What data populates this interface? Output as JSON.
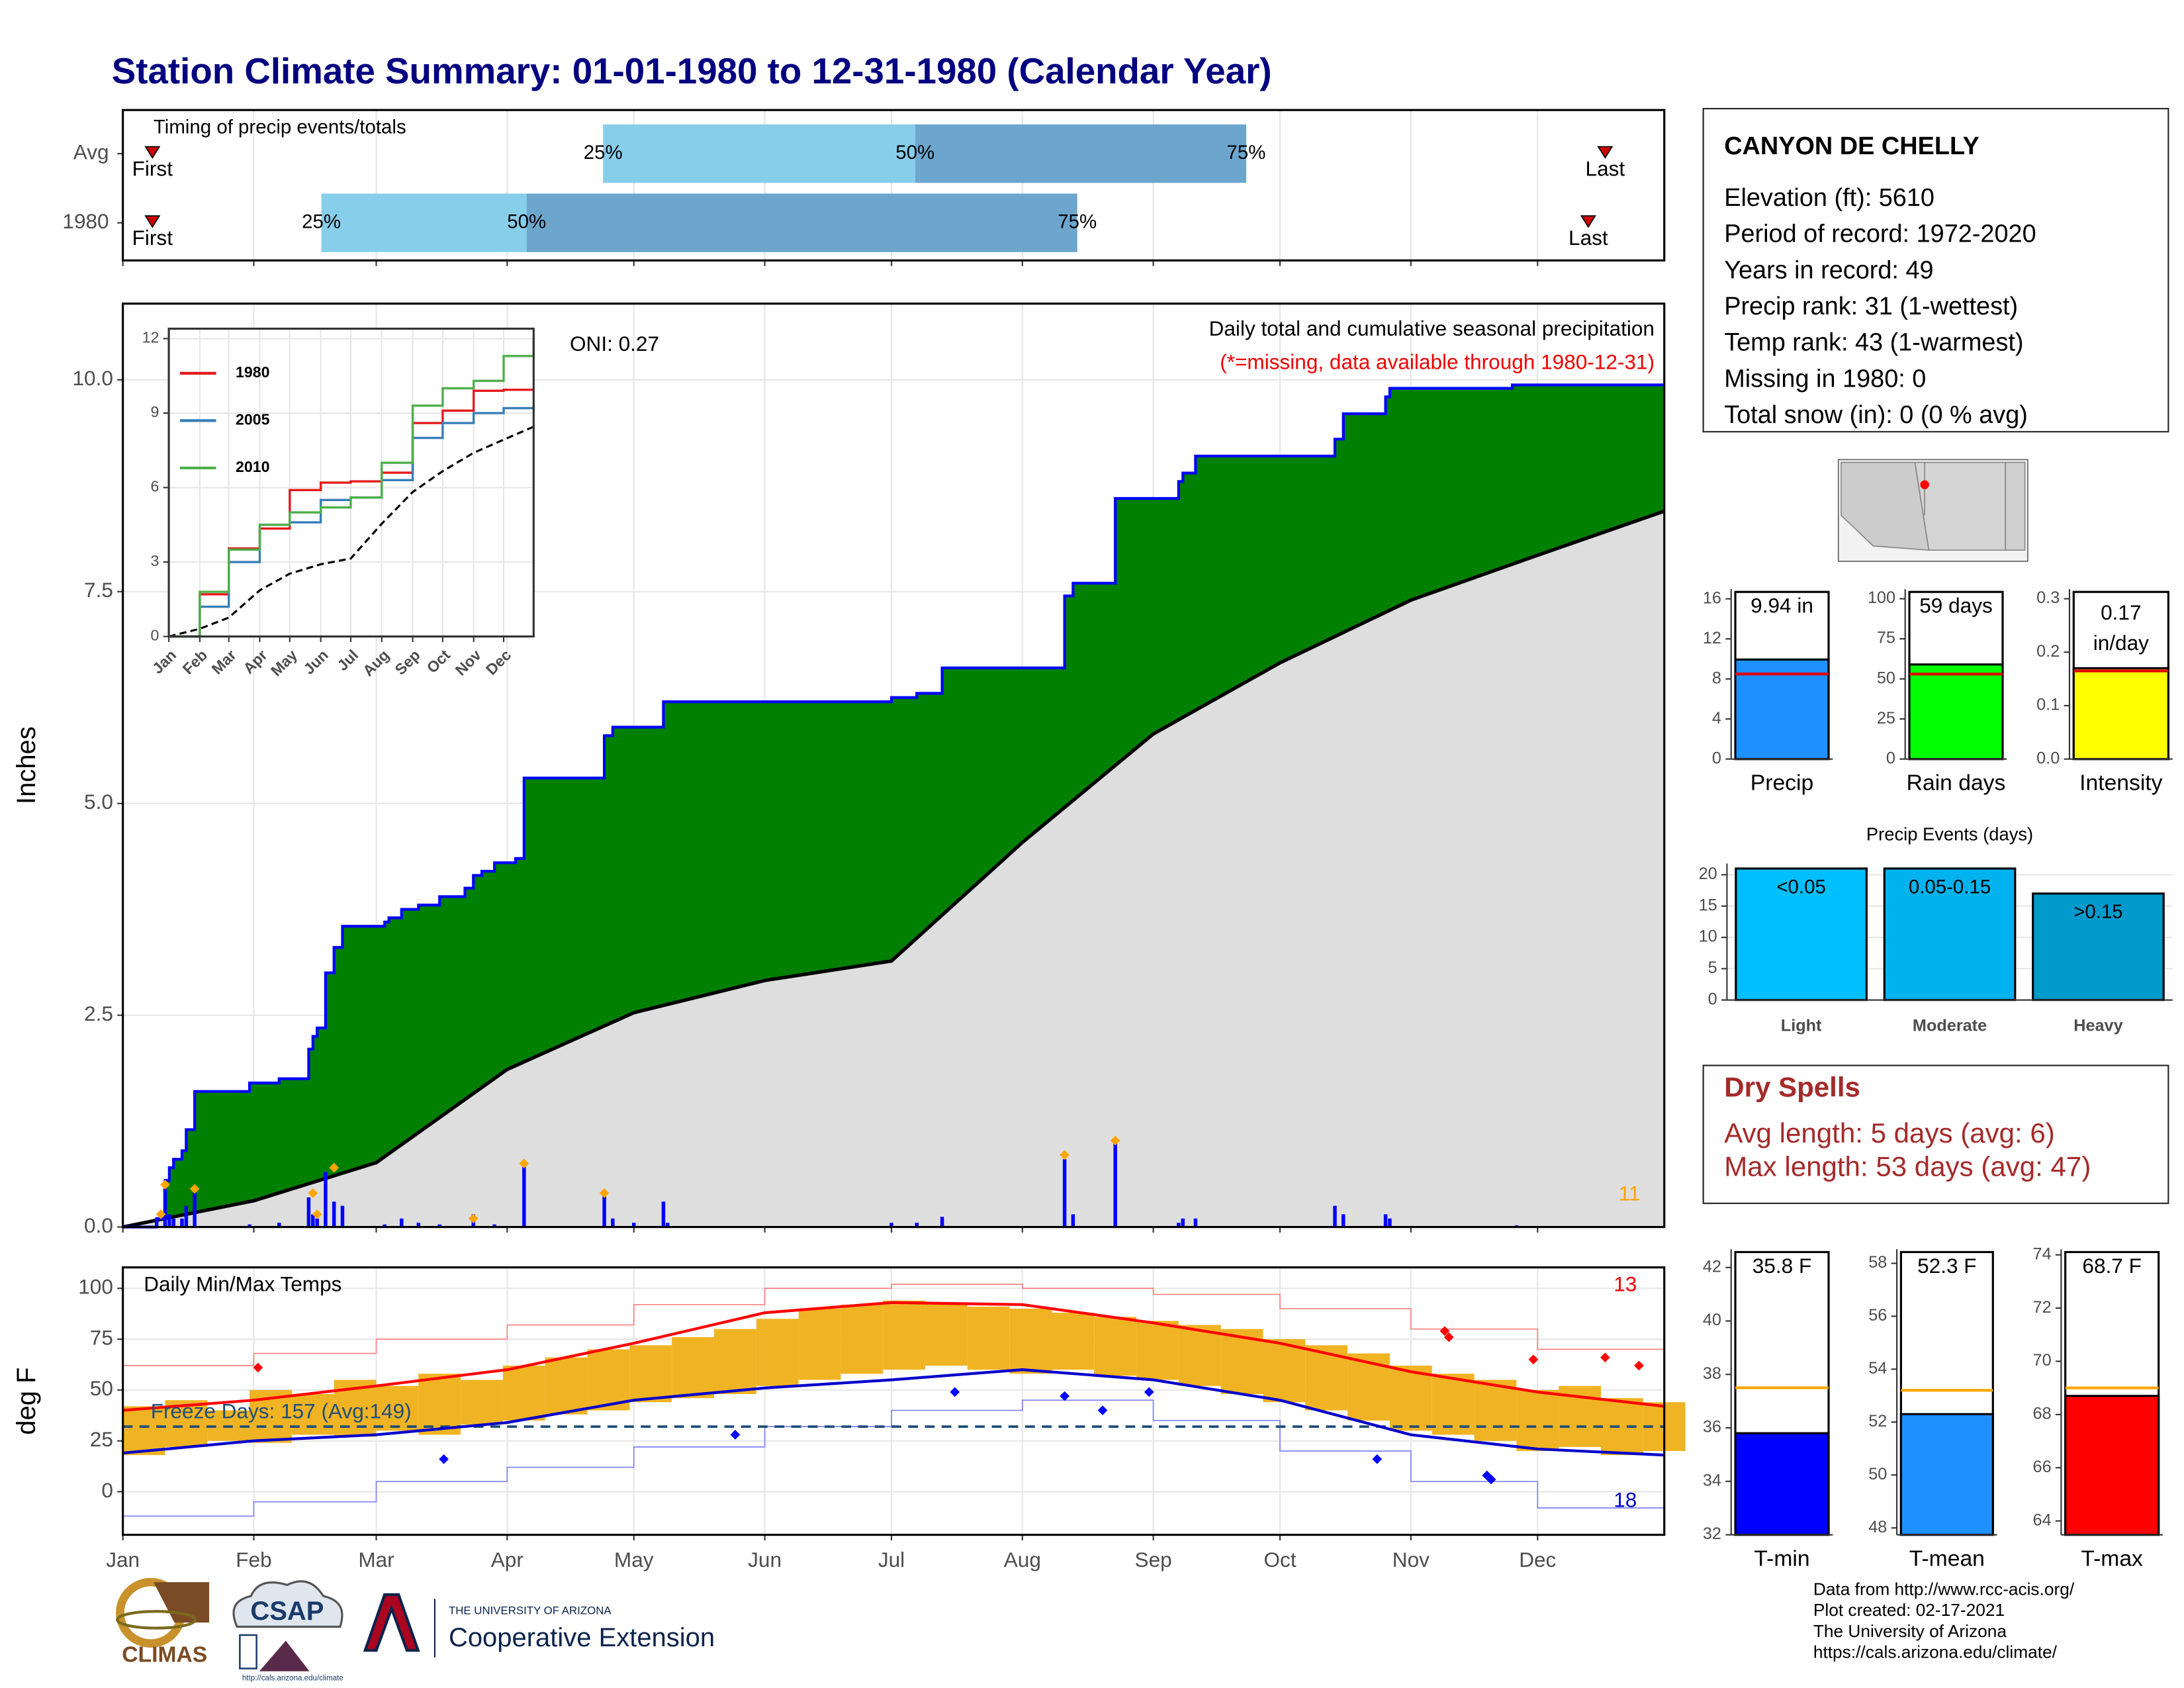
{
  "title": "Station Climate Summary: 01-01-1980 to 12-31-1980 (Calendar Year)",
  "station": {
    "name": "CANYON DE CHELLY",
    "lines": [
      "Elevation (ft): 5610",
      "Period of record: 1972-2020",
      "Years in record: 49",
      "Precip rank: 31 (1-wettest)",
      "Temp rank: 43 (1-warmest)",
      "Missing in 1980: 0",
      "Total snow (in): 0 (0 % avg)"
    ]
  },
  "dry_spells": {
    "title": "Dry Spells",
    "lines": [
      "Avg length: 5 days (avg: 6)",
      "Max length: 53 days (avg: 47)"
    ]
  },
  "footer": {
    "logos": [
      "CLIMAS",
      "CSAP",
      "http://cals.arizona.edu/climate",
      "THE UNIVERSITY OF ARIZONA",
      "Cooperative Extension"
    ],
    "credits": [
      "Data from http://www.rcc-acis.org/",
      "Plot created: 02-17-2021",
      "The University of Arizona",
      "https://cals.arizona.edu/climate/"
    ]
  },
  "chart_data": [
    {
      "type": "timeline",
      "title": "Timing of precip events/totals",
      "xlim": [
        1,
        366
      ],
      "xticks": [
        1,
        32,
        61,
        92,
        122,
        153,
        183,
        214,
        245,
        275,
        306,
        336
      ],
      "rows": [
        {
          "name": "Avg",
          "first": 8,
          "p25": 114.7,
          "p50": 188.6,
          "p75": 267,
          "last": 352
        },
        {
          "name": "1980",
          "first": 8,
          "p25": 48,
          "p50": 96.6,
          "p75": 227,
          "last": 348
        }
      ],
      "percent_labels": [
        "25%",
        "50%",
        "75%"
      ],
      "first_label": "First",
      "last_label": "Last",
      "colors": [
        "#87ceeb",
        "#6ca6cd"
      ],
      "marker_color": "#cc0000",
      "grid": true
    },
    {
      "type": "cumulative",
      "ylabel": "Inches",
      "title": "Daily total and cumulative seasonal precipitation",
      "subtitle": "(*=missing, data available through 1980-12-31)",
      "annotation": "ONI: 0.27",
      "count_label": "11",
      "xlim": [
        1,
        366
      ],
      "xticks": [
        1,
        32,
        61,
        92,
        122,
        153,
        183,
        214,
        245,
        275,
        306,
        336
      ],
      "ylim": [
        0,
        10.9
      ],
      "yticks": [
        {
          "value": 0,
          "label": "0.0"
        },
        2.5,
        {
          "value": 5,
          "label": "5.0"
        },
        7.5,
        {
          "value": 10,
          "label": "10.0"
        }
      ],
      "grid": true,
      "cumulative": {
        "color": "#0000ff",
        "fill": "#008000",
        "x": [
          1,
          9,
          11,
          12,
          13,
          15,
          16,
          18,
          31,
          38,
          45,
          46,
          47,
          49,
          51,
          53,
          63,
          64,
          67,
          71,
          76,
          82,
          84,
          86,
          89,
          94,
          96,
          115,
          117,
          129,
          183,
          189,
          195,
          224,
          226,
          236,
          251,
          252,
          255,
          288,
          290,
          300,
          301,
          330,
          366
        ],
        "values": [
          0,
          0.1,
          0.55,
          0.7,
          0.8,
          0.9,
          1.15,
          1.6,
          1.7,
          1.75,
          2.1,
          2.25,
          2.35,
          3.0,
          3.3,
          3.55,
          3.6,
          3.65,
          3.75,
          3.8,
          3.9,
          4.0,
          4.15,
          4.2,
          4.3,
          4.35,
          5.3,
          5.8,
          5.9,
          6.2,
          6.25,
          6.3,
          6.6,
          7.45,
          7.6,
          8.6,
          8.8,
          8.9,
          9.1,
          9.3,
          9.6,
          9.8,
          9.9,
          9.94,
          9.94
        ]
      },
      "average": {
        "color": "#000000",
        "fill": "#dedede",
        "x": [
          1,
          32,
          61,
          92,
          122,
          153,
          183,
          214,
          245,
          275,
          306,
          336,
          366
        ],
        "values": [
          0,
          0.31,
          0.76,
          1.86,
          2.53,
          2.91,
          3.14,
          4.54,
          5.82,
          6.66,
          7.4,
          7.93,
          8.45
        ]
      },
      "daily": {
        "color": "#0000ff",
        "x": [
          9,
          11,
          12,
          13,
          15,
          16,
          18,
          31,
          38,
          45,
          46,
          47,
          49,
          51,
          53,
          63,
          67,
          71,
          76,
          84,
          89,
          96,
          115,
          117,
          122,
          129,
          130,
          183,
          189,
          195,
          224,
          226,
          236,
          251,
          252,
          255,
          288,
          290,
          300,
          301,
          331
        ],
        "values": [
          0.1,
          0.45,
          0.15,
          0.1,
          0.1,
          0.25,
          0.45,
          0.03,
          0.05,
          0.35,
          0.15,
          0.1,
          0.65,
          0.3,
          0.25,
          0.03,
          0.1,
          0.05,
          0.03,
          0.15,
          0.03,
          0.75,
          0.4,
          0.1,
          0.05,
          0.3,
          0.05,
          0.05,
          0.05,
          0.12,
          0.8,
          0.15,
          1.0,
          0.05,
          0.1,
          0.1,
          0.25,
          0.15,
          0.15,
          0.1,
          0.02
        ]
      },
      "extremes": {
        "color": "#ffa500",
        "x": [
          10,
          11,
          18,
          46,
          47,
          51,
          84,
          96,
          115,
          224,
          236
        ],
        "values": [
          0.15,
          0.5,
          0.45,
          0.4,
          0.15,
          0.7,
          0.1,
          0.75,
          0.4,
          0.85,
          1.02
        ]
      }
    },
    {
      "type": "line",
      "xlim": [
        1,
        366
      ],
      "ylim": [
        0,
        12.4
      ],
      "yticks": [
        0,
        3,
        6,
        9,
        12
      ],
      "xticks": [
        {
          "value": 1,
          "label": "Jan"
        },
        {
          "value": 32,
          "label": "Feb"
        },
        {
          "value": 61,
          "label": "Mar"
        },
        {
          "value": 92,
          "label": "Apr"
        },
        {
          "value": 122,
          "label": "May"
        },
        {
          "value": 153,
          "label": "Jun"
        },
        {
          "value": 183,
          "label": "Jul"
        },
        {
          "value": 214,
          "label": "Aug"
        },
        {
          "value": 245,
          "label": "Sep"
        },
        {
          "value": 275,
          "label": "Oct"
        },
        {
          "value": 306,
          "label": "Nov"
        },
        {
          "value": 336,
          "label": "Dec"
        }
      ],
      "x": [
        1,
        32,
        61,
        92,
        122,
        153,
        183,
        214,
        245,
        275,
        306,
        336,
        366
      ],
      "series": [
        {
          "name": "1980",
          "color": "#e41a1c",
          "values": [
            0,
            1.7,
            3.55,
            4.35,
            5.9,
            6.2,
            6.25,
            6.6,
            8.6,
            9.1,
            9.9,
            9.94,
            9.94
          ]
        },
        {
          "name": "2005",
          "color": "#377eb8",
          "values": [
            0,
            1.2,
            3.0,
            4.5,
            4.6,
            5.5,
            5.6,
            6.3,
            8.0,
            8.6,
            9.0,
            9.2,
            9.3
          ]
        },
        {
          "name": "2010",
          "color": "#4daf4a",
          "values": [
            0,
            1.8,
            3.5,
            4.5,
            5.0,
            5.2,
            5.6,
            7.0,
            9.3,
            10.0,
            10.3,
            11.3,
            12.0
          ]
        }
      ],
      "average": {
        "color": "#000000",
        "values": [
          0,
          0.31,
          0.76,
          1.86,
          2.53,
          2.91,
          3.14,
          4.54,
          5.82,
          6.66,
          7.4,
          7.93,
          8.45
        ]
      }
    },
    {
      "type": "bar",
      "categories": [
        "Precip"
      ],
      "values": [
        9.94
      ],
      "value_labels": [
        "9.94 in"
      ],
      "reference": 8.5,
      "ylim": [
        0,
        16.97
      ],
      "yticks": [
        0,
        4,
        8,
        12,
        16
      ],
      "color": "#1e90ff",
      "reference_color": "#dd0000"
    },
    {
      "type": "bar",
      "categories": [
        "Rain days"
      ],
      "values": [
        59
      ],
      "value_labels": [
        "59 days"
      ],
      "reference": 53,
      "ylim": [
        0,
        106
      ],
      "yticks": [
        0,
        25,
        50,
        75,
        100
      ],
      "color": "#00ff00",
      "reference_color": "#dd0000"
    },
    {
      "type": "bar",
      "categories": [
        "Intensity"
      ],
      "values": [
        0.17
      ],
      "value_labels": [
        "0.17 in/day"
      ],
      "label_wrap": true,
      "reference": 0.165,
      "ylim": [
        0,
        0.318
      ],
      "yticks": [
        {
          "value": 0,
          "label": "0.0"
        },
        0.1,
        0.2,
        0.3
      ],
      "color": "#ffff00",
      "reference_color": "#dd0000"
    },
    {
      "type": "bar",
      "title": "Precip Events (days)",
      "categories": [
        "Light",
        "Moderate",
        "Heavy"
      ],
      "values": [
        21,
        21,
        17
      ],
      "bin_labels": [
        "<0.05",
        "0.05-0.15",
        ">0.15"
      ],
      "ylim": [
        0,
        21.8
      ],
      "yticks": [
        0,
        5,
        10,
        15,
        20
      ],
      "colors": [
        "#00bfff",
        "#00b2ee",
        "#009acd"
      ],
      "grid": true
    },
    {
      "type": "temperature",
      "ylabel": "deg F",
      "title": "Daily Min/Max Temps",
      "highs_label": "13",
      "lows_label": "18",
      "freeze_label": "Freeze Days: 157 (Avg:149)",
      "freeze": 32,
      "xlim": [
        1,
        366
      ],
      "xticks": [
        {
          "value": 1,
          "label": "Jan"
        },
        {
          "value": 32,
          "label": "Feb"
        },
        {
          "value": 61,
          "label": "Mar"
        },
        {
          "value": 92,
          "label": "Apr"
        },
        {
          "value": 122,
          "label": "May"
        },
        {
          "value": 153,
          "label": "Jun"
        },
        {
          "value": 183,
          "label": "Jul"
        },
        {
          "value": 214,
          "label": "Aug"
        },
        {
          "value": 245,
          "label": "Sep"
        },
        {
          "value": 275,
          "label": "Oct"
        },
        {
          "value": 306,
          "label": "Nov"
        },
        {
          "value": 336,
          "label": "Dec"
        }
      ],
      "ylim": [
        -21.2,
        110.3
      ],
      "yticks": [
        0,
        25,
        50,
        75,
        100
      ],
      "grid": true,
      "daily": {
        "color": "#f0b323",
        "x": [
          1,
          11,
          21,
          31,
          41,
          51,
          61,
          71,
          81,
          91,
          101,
          111,
          121,
          131,
          141,
          151,
          161,
          171,
          181,
          191,
          201,
          211,
          221,
          231,
          241,
          251,
          261,
          271,
          281,
          291,
          301,
          311,
          321,
          331,
          341,
          351,
          361
        ],
        "min": [
          18,
          22,
          25,
          24,
          28,
          27,
          30,
          28,
          33,
          35,
          38,
          40,
          44,
          46,
          48,
          52,
          55,
          58,
          60,
          62,
          60,
          58,
          60,
          57,
          55,
          52,
          48,
          44,
          40,
          35,
          30,
          28,
          25,
          20,
          22,
          18,
          20
        ],
        "max": [
          42,
          45,
          40,
          50,
          48,
          55,
          52,
          58,
          55,
          62,
          66,
          70,
          72,
          76,
          80,
          85,
          90,
          92,
          94,
          93,
          91,
          90,
          88,
          86,
          84,
          82,
          80,
          75,
          72,
          68,
          62,
          58,
          55,
          50,
          52,
          46,
          44
        ]
      },
      "monthly_x": [
        1,
        32,
        61,
        92,
        122,
        153,
        183,
        214,
        245,
        275,
        306,
        336,
        366
      ],
      "avg_max": {
        "color": "#ff0000",
        "values": [
          40,
          45,
          52,
          60,
          73,
          88,
          93,
          92,
          83,
          73,
          59,
          49,
          42
        ]
      },
      "avg_min": {
        "color": "#0000cc",
        "values": [
          19,
          25,
          28,
          34,
          45,
          51,
          55,
          60,
          55,
          45,
          28,
          21,
          18
        ]
      },
      "record_max": {
        "color": "#ff8080",
        "values": [
          62,
          68,
          75,
          82,
          92,
          100,
          102,
          100,
          97,
          90,
          80,
          70,
          66
        ]
      },
      "record_min": {
        "color": "#8080ff",
        "values": [
          -12,
          -5,
          5,
          12,
          22,
          32,
          40,
          45,
          35,
          20,
          5,
          -8,
          -5
        ]
      },
      "record_highs": {
        "color": "#ff0000",
        "x": [
          33,
          314,
          315,
          335,
          352,
          360
        ],
        "values": [
          61,
          79,
          76,
          65,
          66,
          62
        ]
      },
      "record_lows": {
        "color": "#0000ff",
        "x": [
          77,
          146,
          198,
          224,
          233,
          244,
          298,
          324,
          325
        ],
        "values": [
          16,
          28,
          49,
          47,
          40,
          49,
          16,
          8,
          6
        ]
      }
    },
    {
      "type": "bar",
      "categories": [
        "T-min"
      ],
      "values": [
        35.8
      ],
      "value_labels": [
        "35.8 F"
      ],
      "reference": 37.5,
      "ylim": [
        32,
        42.68
      ],
      "yticks": [
        32,
        34,
        36,
        38,
        40,
        42
      ],
      "color": "#0000ff",
      "reference_color": "#ffa500"
    },
    {
      "type": "bar",
      "categories": [
        "T-mean"
      ],
      "values": [
        52.3
      ],
      "value_labels": [
        "52.3 F"
      ],
      "reference": 53.2,
      "ylim": [
        47.74,
        58.53
      ],
      "yticks": [
        48,
        50,
        52,
        54,
        56,
        58
      ],
      "color": "#1e90ff",
      "reference_color": "#ffa500"
    },
    {
      "type": "bar",
      "categories": [
        "T-max"
      ],
      "values": [
        68.7
      ],
      "value_labels": [
        "68.7 F"
      ],
      "reference": 69,
      "ylim": [
        63.48,
        74.21
      ],
      "yticks": [
        64,
        66,
        68,
        70,
        72,
        74
      ],
      "color": "#ff0000",
      "reference_color": "#ffa500"
    }
  ]
}
